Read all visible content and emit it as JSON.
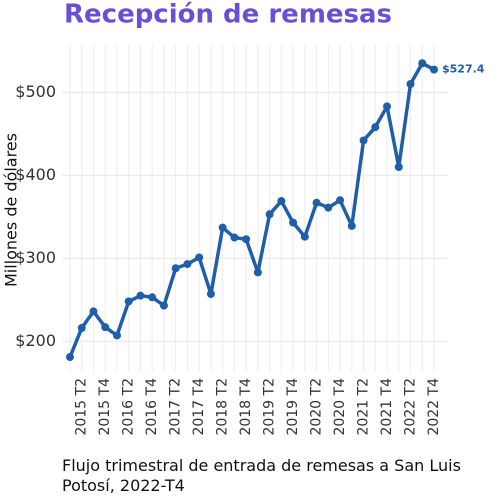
{
  "chart_data": {
    "type": "line",
    "title": "Recepción de remesas",
    "y_label": "Millones de dólares",
    "caption": "Flujo trimestral de entrada de remesas a San Luis Potosí, 2022-T4",
    "categories": [
      null,
      "2015 T2",
      null,
      "2015 T4",
      null,
      "2016 T2",
      null,
      "2016 T4",
      null,
      "2017 T2",
      null,
      "2017 T4",
      null,
      "2018 T2",
      null,
      "2018 T4",
      null,
      "2019 T2",
      null,
      "2019 T4",
      null,
      "2020 T2",
      null,
      "2020 T4",
      null,
      "2021 T2",
      null,
      "2021 T4",
      null,
      "2022 T2",
      null,
      "2022 T4"
    ],
    "values": [
      181,
      216,
      236,
      217,
      207,
      248,
      255,
      253,
      243,
      288,
      293,
      301,
      257,
      337,
      325,
      323,
      283,
      353,
      369,
      343,
      326,
      367,
      361,
      370,
      339,
      442,
      458,
      483,
      410,
      510,
      535,
      527.4
    ],
    "value_labels": [
      null,
      null,
      null,
      null,
      null,
      null,
      null,
      null,
      null,
      null,
      null,
      null,
      null,
      null,
      null,
      null,
      null,
      null,
      null,
      null,
      null,
      null,
      null,
      null,
      null,
      null,
      null,
      null,
      null,
      null,
      null,
      "$527.4"
    ],
    "color": "#1f5ea8",
    "ylim": [
      163,
      557
    ],
    "yticks": [
      {
        "value": 200,
        "label": "$200"
      },
      {
        "value": 300,
        "label": "$300"
      },
      {
        "value": 400,
        "label": "$400"
      },
      {
        "value": 500,
        "label": "$500"
      }
    ],
    "grid": true
  }
}
